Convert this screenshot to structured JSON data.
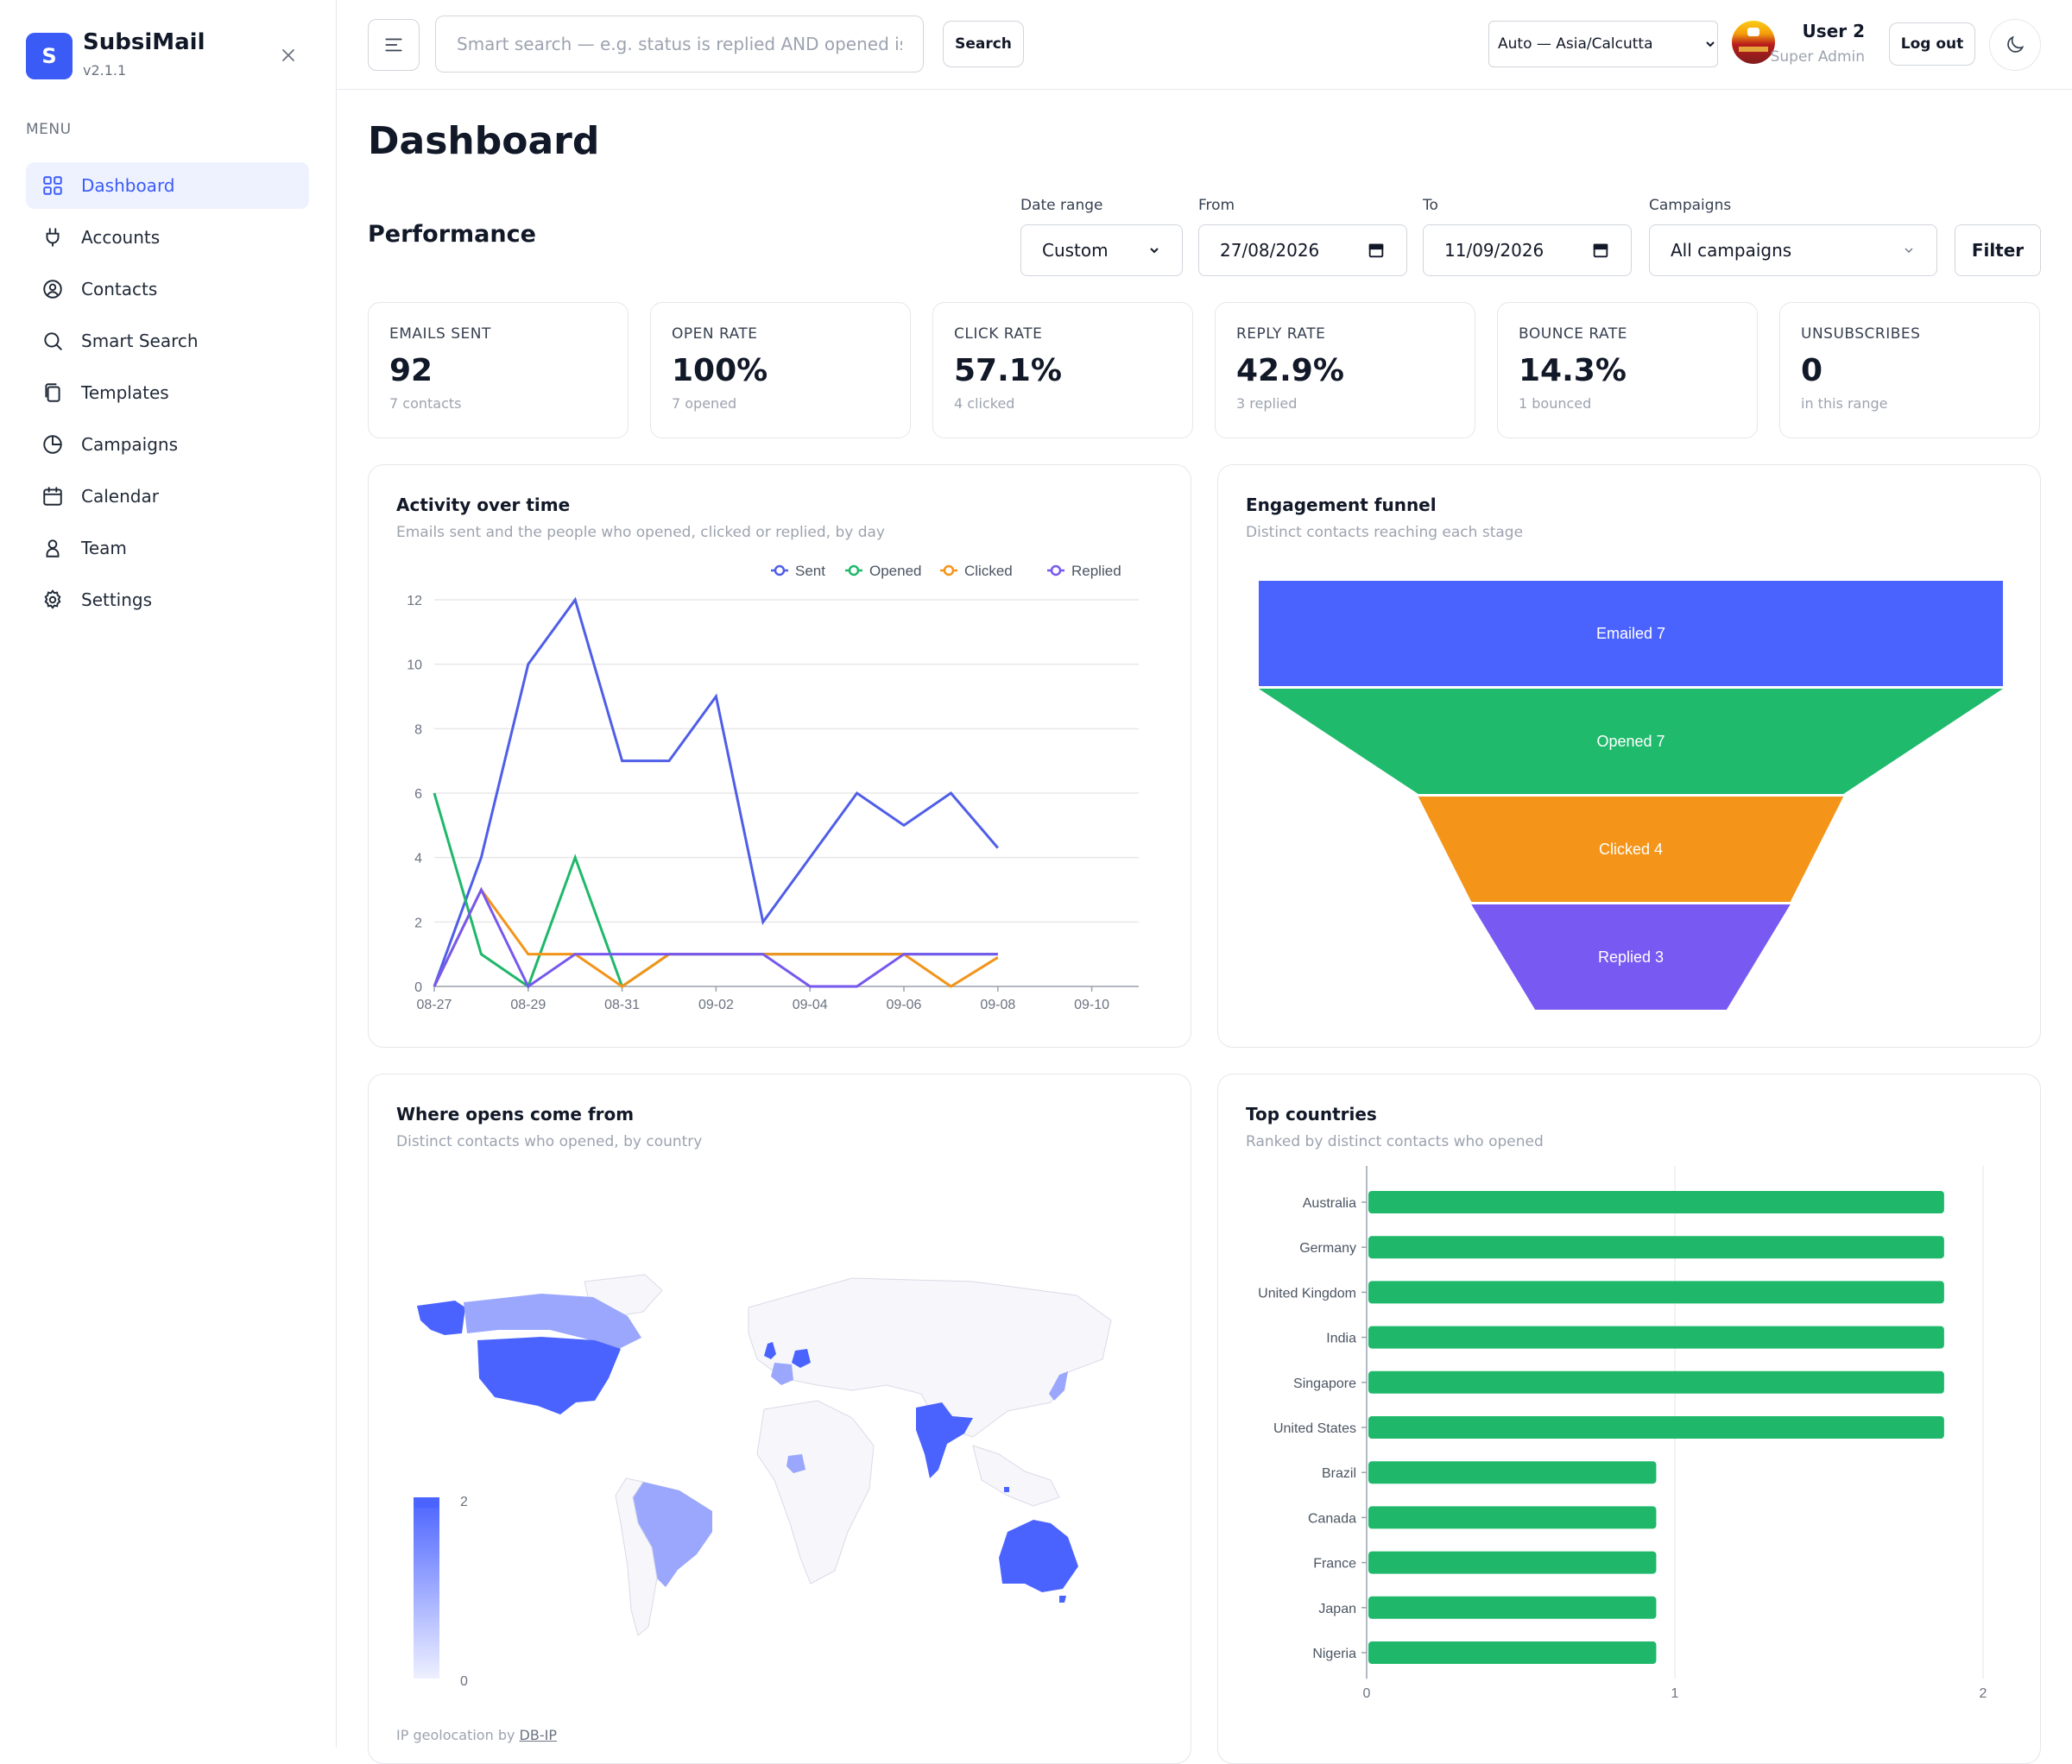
{
  "app": {
    "name": "SubsiMail",
    "version": "v2.1.1",
    "logo_letter": "S"
  },
  "sidebar": {
    "menu_label": "MENU",
    "items": [
      {
        "label": "Dashboard",
        "icon": "grid-icon",
        "active": true
      },
      {
        "label": "Accounts",
        "icon": "plug-icon"
      },
      {
        "label": "Contacts",
        "icon": "user-circle-icon"
      },
      {
        "label": "Smart Search",
        "icon": "search-icon"
      },
      {
        "label": "Templates",
        "icon": "copy-icon"
      },
      {
        "label": "Campaigns",
        "icon": "pie-icon"
      },
      {
        "label": "Calendar",
        "icon": "calendar-icon"
      },
      {
        "label": "Team",
        "icon": "person-icon"
      },
      {
        "label": "Settings",
        "icon": "gear-icon"
      }
    ]
  },
  "topbar": {
    "search_placeholder": "Smart search — e.g. status is replied AND opened is true",
    "search_button": "Search",
    "timezone": "Auto — Asia/Calcutta",
    "user_name": "User 2",
    "user_role": "Super Admin",
    "logout": "Log out"
  },
  "page": {
    "title": "Dashboard",
    "section": "Performance"
  },
  "filters": {
    "date_range_label": "Date range",
    "date_range_value": "Custom",
    "from_label": "From",
    "from_value": "27/08/2026",
    "to_label": "To",
    "to_value": "11/09/2026",
    "campaigns_label": "Campaigns",
    "campaigns_value": "All campaigns",
    "filter_button": "Filter"
  },
  "stats": [
    {
      "label": "EMAILS SENT",
      "value": "92",
      "sub": "7 contacts"
    },
    {
      "label": "OPEN RATE",
      "value": "100%",
      "sub": "7 opened"
    },
    {
      "label": "CLICK RATE",
      "value": "57.1%",
      "sub": "4 clicked"
    },
    {
      "label": "REPLY RATE",
      "value": "42.9%",
      "sub": "3 replied"
    },
    {
      "label": "BOUNCE RATE",
      "value": "14.3%",
      "sub": "1 bounced"
    },
    {
      "label": "UNSUBSCRIBES",
      "value": "0",
      "sub": "in this range"
    }
  ],
  "cards": {
    "activity": {
      "title": "Activity over time",
      "subtitle": "Emails sent and the people who opened, clicked or replied, by day"
    },
    "funnel": {
      "title": "Engagement funnel",
      "subtitle": "Distinct contacts reaching each stage"
    },
    "map": {
      "title": "Where opens come from",
      "subtitle": "Distinct contacts who opened, by country",
      "attribution_prefix": "IP geolocation by",
      "attribution_link": "DB-IP",
      "scale_max": "2",
      "scale_min": "0"
    },
    "countries": {
      "title": "Top countries",
      "subtitle": "Ranked by distinct contacts who opened"
    }
  },
  "colors": {
    "accent": "#3b5bf6",
    "sent": "#4f5ee8",
    "opened": "#1fb86a",
    "clicked": "#f39419",
    "replied": "#7758ef"
  },
  "chart_data": [
    {
      "type": "line",
      "title": "Activity over time",
      "x": [
        "08-27",
        "08-28",
        "08-29",
        "08-30",
        "08-31",
        "09-01",
        "09-02",
        "09-03",
        "09-04",
        "09-05",
        "09-06",
        "09-07",
        "09-08"
      ],
      "x_ticks": [
        "08-27",
        "08-29",
        "08-31",
        "09-02",
        "09-04",
        "09-06",
        "09-08",
        "09-10"
      ],
      "ylim": [
        0,
        12
      ],
      "y_ticks": [
        0,
        2,
        4,
        6,
        8,
        10,
        12
      ],
      "grid": true,
      "legend_position": "top",
      "series": [
        {
          "name": "Sent",
          "color": "#4f5ee8",
          "values": [
            0,
            4,
            10,
            12,
            7,
            7,
            9,
            2,
            4,
            6,
            5,
            6,
            4.3
          ]
        },
        {
          "name": "Opened",
          "color": "#1fb86a",
          "values": [
            6,
            1,
            0,
            4,
            0,
            1,
            1,
            1,
            1,
            1,
            1,
            1,
            1
          ]
        },
        {
          "name": "Clicked",
          "color": "#f39419",
          "values": [
            0,
            3,
            1,
            1,
            0,
            1,
            1,
            1,
            1,
            1,
            1,
            0,
            0.9
          ]
        },
        {
          "name": "Replied",
          "color": "#7758ef",
          "values": [
            0,
            3,
            0,
            1,
            1,
            1,
            1,
            1,
            0,
            0,
            1,
            1,
            1
          ]
        }
      ]
    },
    {
      "type": "funnel",
      "title": "Engagement funnel",
      "categories": [
        "Emailed",
        "Opened",
        "Clicked",
        "Replied"
      ],
      "values": [
        7,
        7,
        4,
        3
      ],
      "colors": [
        "#4a63ff",
        "#1fba6c",
        "#f4951a",
        "#7859f2"
      ]
    },
    {
      "type": "bar",
      "orientation": "horizontal",
      "title": "Top countries",
      "categories": [
        "Australia",
        "Germany",
        "United Kingdom",
        "India",
        "Singapore",
        "United States",
        "Brazil",
        "Canada",
        "France",
        "Japan",
        "Nigeria"
      ],
      "values": [
        2,
        2,
        2,
        2,
        2,
        2,
        1,
        1,
        1,
        1,
        1
      ],
      "xlim": [
        0,
        2
      ],
      "x_ticks": [
        0,
        1,
        2
      ],
      "color": "#1fb86a"
    },
    {
      "type": "choropleth",
      "title": "Where opens come from",
      "categories": [
        "United States",
        "Australia",
        "India",
        "Germany",
        "Canada",
        "Brazil",
        "France",
        "United Kingdom",
        "Japan",
        "Nigeria",
        "Singapore"
      ],
      "values": [
        2,
        2,
        2,
        2,
        1,
        1,
        1,
        2,
        1,
        1,
        2
      ],
      "scale": [
        0,
        2
      ]
    }
  ]
}
